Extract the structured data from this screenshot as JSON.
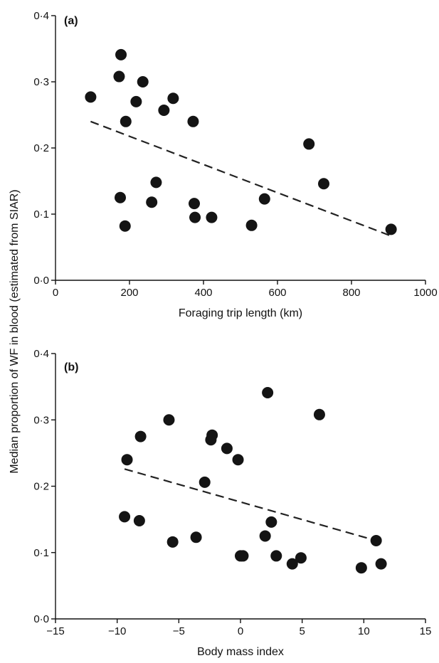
{
  "figure": {
    "ylabel": "Median proportion of WF in blood (estimated from SIAR)"
  },
  "chart_data": [
    {
      "type": "scatter",
      "panel_label": "(a)",
      "xlabel": "Foraging trip length (km)",
      "ylabel": "Median proportion of WF in blood (estimated from SIAR)",
      "xlim": [
        0,
        1000
      ],
      "ylim": [
        0,
        0.4
      ],
      "xticks": [
        0,
        200,
        400,
        600,
        800,
        1000
      ],
      "xtick_labels": [
        "0",
        "200",
        "400",
        "600",
        "800",
        "1000"
      ],
      "yticks": [
        0,
        0.1,
        0.2,
        0.3,
        0.4
      ],
      "ytick_labels": [
        "0·0",
        "0·1",
        "0·2",
        "0·3",
        "0·4"
      ],
      "grid": false,
      "series": [
        {
          "points": [
            {
              "x": 95,
              "y": 0.277
            },
            {
              "x": 172,
              "y": 0.308
            },
            {
              "x": 177,
              "y": 0.341
            },
            {
              "x": 190,
              "y": 0.24
            },
            {
              "x": 218,
              "y": 0.27
            },
            {
              "x": 236,
              "y": 0.3
            },
            {
              "x": 293,
              "y": 0.257
            },
            {
              "x": 318,
              "y": 0.275
            },
            {
              "x": 372,
              "y": 0.24
            },
            {
              "x": 175,
              "y": 0.125
            },
            {
              "x": 188,
              "y": 0.082
            },
            {
              "x": 260,
              "y": 0.118
            },
            {
              "x": 272,
              "y": 0.148
            },
            {
              "x": 375,
              "y": 0.116
            },
            {
              "x": 377,
              "y": 0.095
            },
            {
              "x": 422,
              "y": 0.095
            },
            {
              "x": 530,
              "y": 0.083
            },
            {
              "x": 565,
              "y": 0.123
            },
            {
              "x": 685,
              "y": 0.206
            },
            {
              "x": 725,
              "y": 0.146
            },
            {
              "x": 907,
              "y": 0.077
            }
          ]
        }
      ],
      "trend_line": {
        "x": [
          95,
          907
        ],
        "y": [
          0.24,
          0.067
        ],
        "style": "dashed"
      }
    },
    {
      "type": "scatter",
      "panel_label": "(b)",
      "xlabel": "Body mass index",
      "ylabel": "Median proportion of WF in blood (estimated from SIAR)",
      "xlim": [
        -15,
        15
      ],
      "ylim": [
        0,
        0.4
      ],
      "xticks": [
        -15,
        -10,
        -5,
        0,
        5,
        10,
        15
      ],
      "xtick_labels": [
        "−15",
        "−10",
        "−5",
        "0",
        "5",
        "10",
        "15"
      ],
      "yticks": [
        0,
        0.1,
        0.2,
        0.3,
        0.4
      ],
      "ytick_labels": [
        "0·0",
        "0·1",
        "0·2",
        "0·3",
        "0·4"
      ],
      "grid": false,
      "series": [
        {
          "points": [
            {
              "x": -9.4,
              "y": 0.154
            },
            {
              "x": -9.2,
              "y": 0.24
            },
            {
              "x": -8.1,
              "y": 0.275
            },
            {
              "x": -8.2,
              "y": 0.148
            },
            {
              "x": -5.8,
              "y": 0.3
            },
            {
              "x": -5.5,
              "y": 0.116
            },
            {
              "x": -3.6,
              "y": 0.123
            },
            {
              "x": -2.9,
              "y": 0.206
            },
            {
              "x": -2.4,
              "y": 0.27
            },
            {
              "x": -2.3,
              "y": 0.277
            },
            {
              "x": -1.1,
              "y": 0.257
            },
            {
              "x": -0.2,
              "y": 0.24
            },
            {
              "x": 0.0,
              "y": 0.095
            },
            {
              "x": 0.2,
              "y": 0.095
            },
            {
              "x": 2.0,
              "y": 0.125
            },
            {
              "x": 2.2,
              "y": 0.341
            },
            {
              "x": 2.5,
              "y": 0.146
            },
            {
              "x": 2.9,
              "y": 0.095
            },
            {
              "x": 4.2,
              "y": 0.083
            },
            {
              "x": 4.9,
              "y": 0.092
            },
            {
              "x": 6.4,
              "y": 0.308
            },
            {
              "x": 9.8,
              "y": 0.077
            },
            {
              "x": 11.0,
              "y": 0.118
            },
            {
              "x": 11.4,
              "y": 0.083
            }
          ]
        }
      ],
      "trend_line": {
        "x": [
          -9.4,
          11.0
        ],
        "y": [
          0.226,
          0.118
        ],
        "style": "dashed"
      }
    }
  ]
}
